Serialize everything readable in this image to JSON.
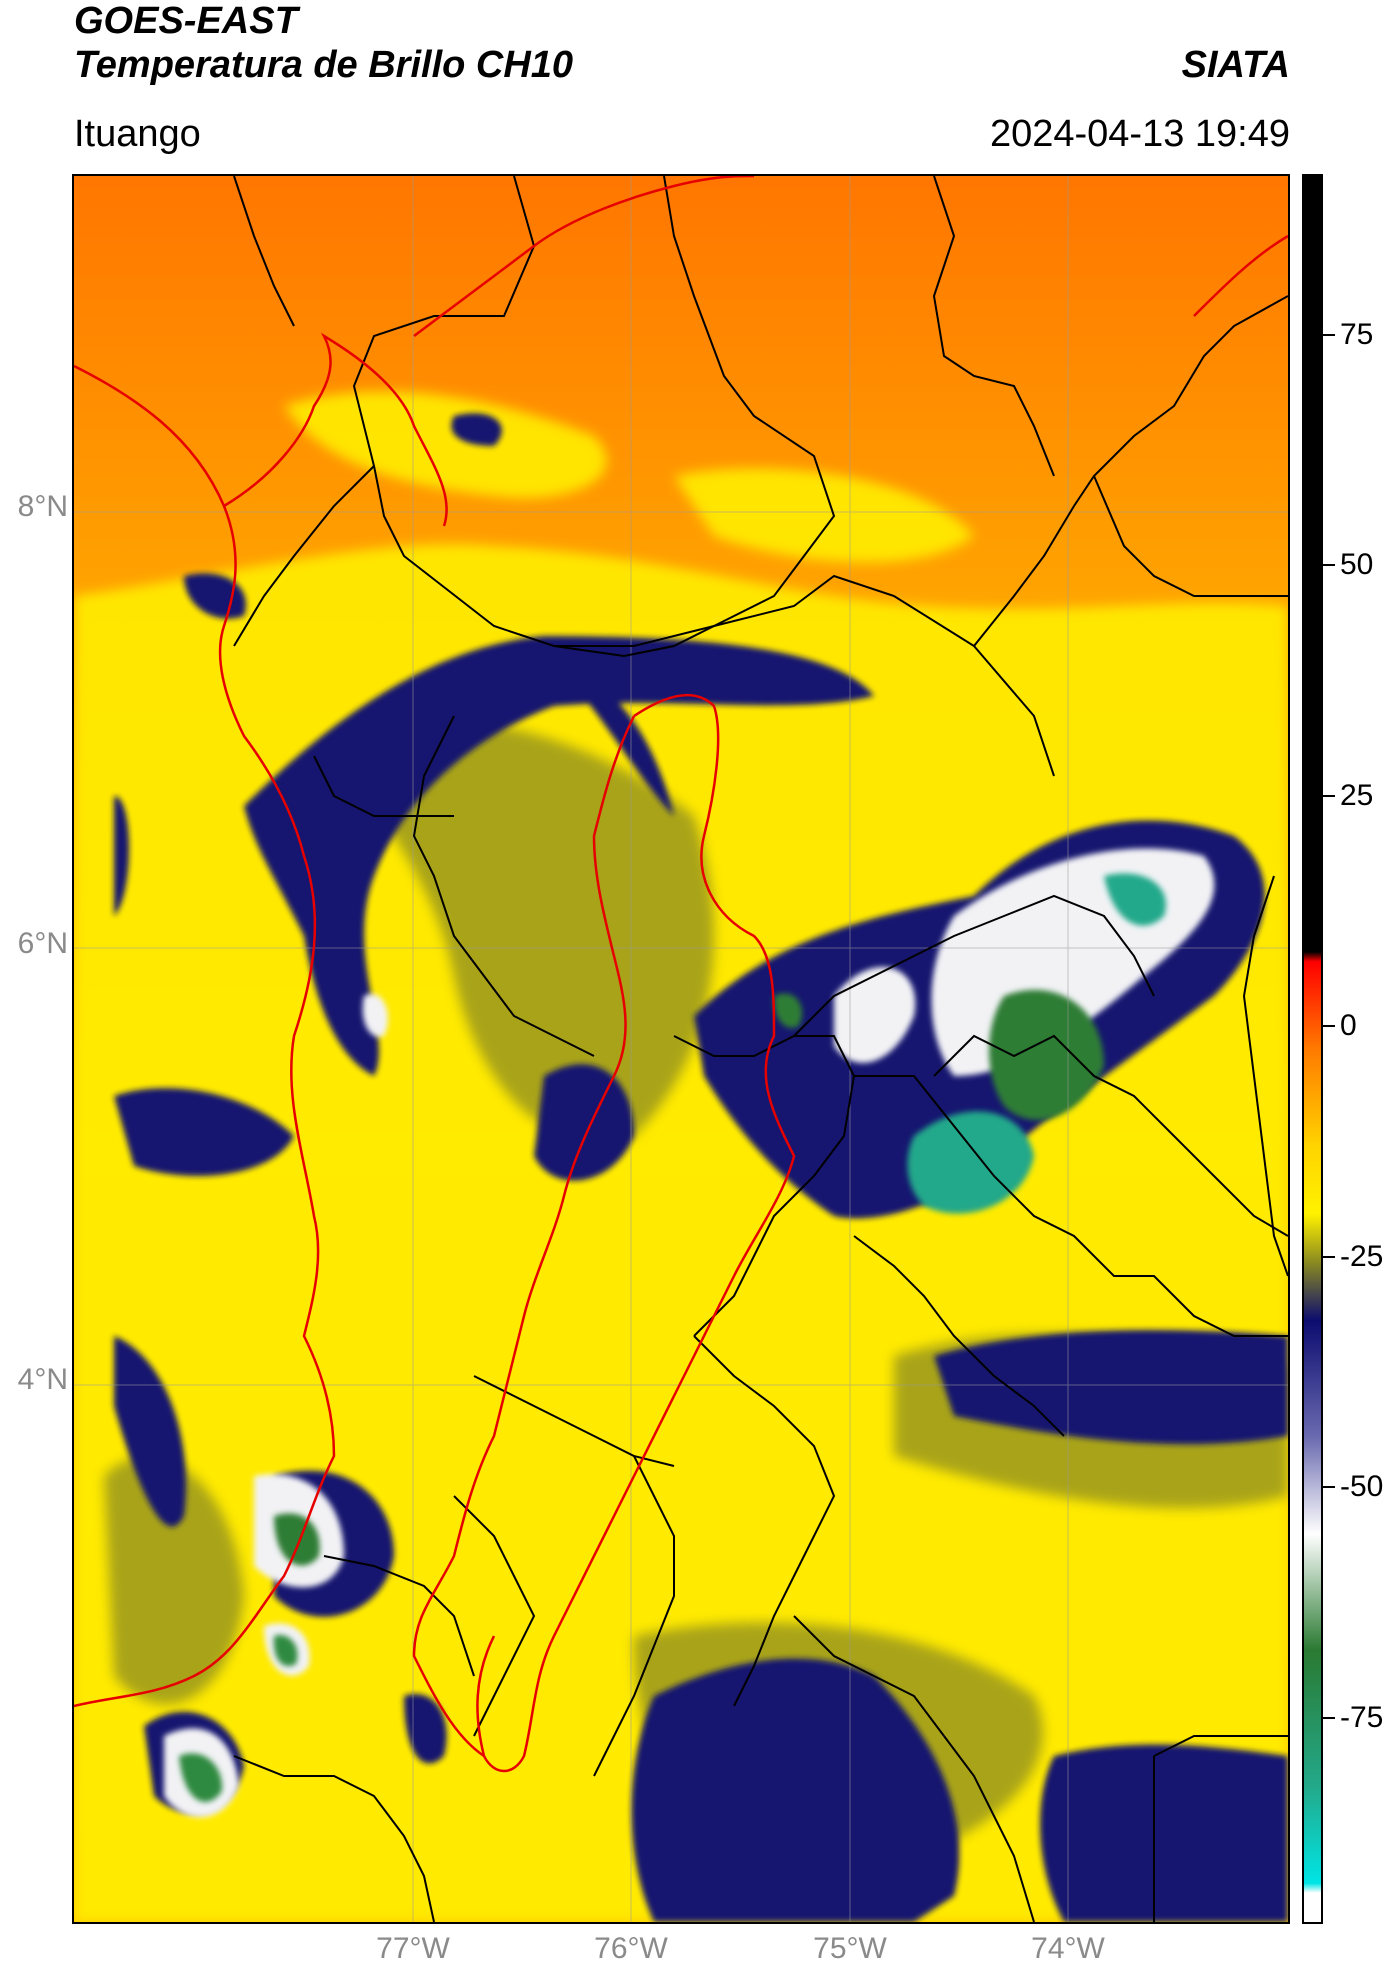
{
  "header": {
    "satellite": "GOES-EAST",
    "product": "Temperatura de Brillo CH10",
    "organization": "SIATA",
    "region": "Ituango",
    "datetime": "2024-04-13 19:49"
  },
  "map": {
    "lat_labels": [
      "8°N",
      "6°N",
      "4°N"
    ],
    "lon_labels": [
      "77°W",
      "76°W",
      "75°W",
      "74°W"
    ],
    "colors": {
      "warm_orange": "#ff7a00",
      "orange": "#ffa500",
      "yellow": "#ffe800",
      "olive": "#8c8c22",
      "dark_blue": "#15156e",
      "white": "#f2f2f2",
      "green": "#2f8a3c",
      "teal": "#25b594",
      "boundary_department": "#e60000",
      "boundary_municipal": "#000000"
    }
  },
  "colorbar": {
    "tick_labels": [
      "75",
      "50",
      "25",
      "0",
      "-25",
      "-50",
      "-75"
    ],
    "tick_values": [
      75,
      50,
      25,
      0,
      -25,
      -50,
      -75
    ],
    "range": [
      -90,
      90
    ],
    "stops": [
      {
        "v": 90,
        "c": "#000000"
      },
      {
        "v": 10,
        "c": "#000000"
      },
      {
        "v": 9,
        "c": "#ff0000"
      },
      {
        "v": 0,
        "c": "#ff7a00"
      },
      {
        "v": -10,
        "c": "#ffd400"
      },
      {
        "v": -17,
        "c": "#fff200"
      },
      {
        "v": -22,
        "c": "#8a8a20"
      },
      {
        "v": -28,
        "c": "#0c0c70"
      },
      {
        "v": -40,
        "c": "#6a6ab0"
      },
      {
        "v": -50,
        "c": "#ffffff"
      },
      {
        "v": -62,
        "c": "#2a7a32"
      },
      {
        "v": -76,
        "c": "#23a98a"
      },
      {
        "v": -86,
        "c": "#00e5e5"
      },
      {
        "v": -87,
        "c": "#ffffff"
      },
      {
        "v": -90,
        "c": "#ffffff"
      }
    ]
  }
}
